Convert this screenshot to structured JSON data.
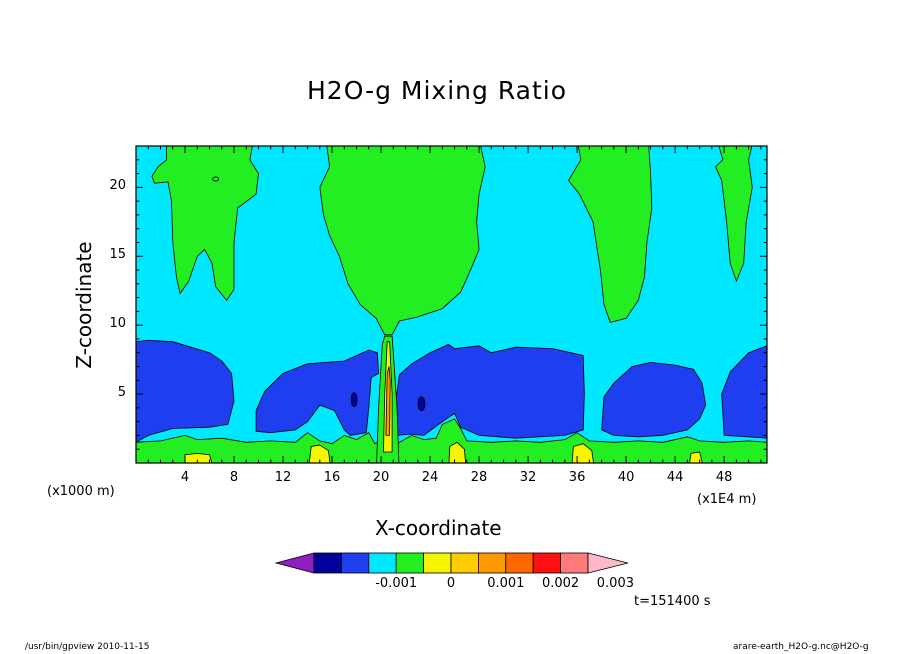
{
  "chart_data": {
    "type": "contour",
    "title": "H2O-g Mixing Ratio",
    "xlabel": "X-coordinate",
    "ylabel": "Z-coordinate",
    "x_unit_left": "(x1000 m)",
    "x_unit_right": "(x1E4 m)",
    "xlim": [
      0,
      51.5
    ],
    "ylim": [
      0,
      23
    ],
    "x_ticks": [
      4,
      8,
      12,
      16,
      20,
      24,
      28,
      32,
      36,
      40,
      44,
      48
    ],
    "y_ticks": [
      5,
      10,
      15,
      20
    ],
    "colorbar": {
      "levels": [
        -0.0025,
        -0.002,
        -0.0015,
        -0.001,
        -0.0005,
        0,
        0.0005,
        0.001,
        0.0015,
        0.002,
        0.0025,
        0.003,
        0.0035
      ],
      "tick_labels": [
        "-0.001",
        "0",
        "0.001",
        "0.002",
        "0.003"
      ],
      "tick_values": [
        -0.001,
        0,
        0.001,
        0.002,
        0.003
      ],
      "colors": [
        "#8f1fbf",
        "#00009a",
        "#1e3ef0",
        "#00e8ff",
        "#22ee22",
        "#f5f500",
        "#ffcc00",
        "#ff9900",
        "#ff6600",
        "#ff1111",
        "#ff7a7a",
        "#ffb8c8"
      ]
    },
    "time_label": "t=151400 s"
  },
  "footer": {
    "left": "/usr/bin/gpview   2010-11-15",
    "right": "arare-earth_H2O-g.nc@H2O-g"
  }
}
